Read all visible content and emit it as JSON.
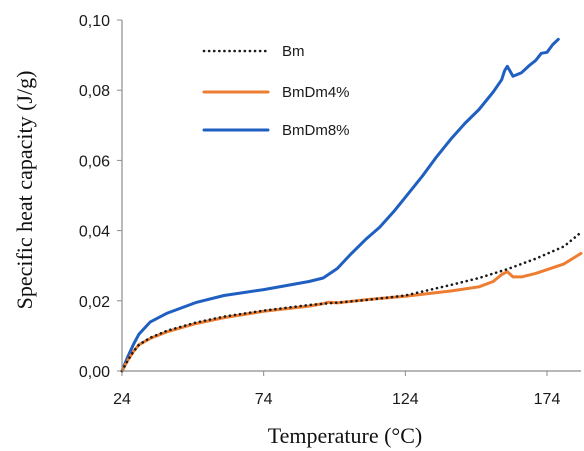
{
  "chart_data": {
    "type": "line",
    "title": "",
    "xlabel": "Temperature (°C)",
    "ylabel": "Specific heat capacity (J/g)",
    "xlim": [
      24,
      186
    ],
    "ylim": [
      0,
      0.1
    ],
    "xticks": [
      24,
      74,
      124,
      174
    ],
    "xtick_labels": [
      "24",
      "74",
      "124",
      "174"
    ],
    "yticks": [
      0,
      0.02,
      0.04,
      0.06,
      0.08,
      0.1
    ],
    "ytick_labels": [
      "0,00",
      "0,02",
      "0,04",
      "0,06",
      "0,08",
      "0,10"
    ],
    "grid": false,
    "legend_position": "top-left",
    "series": [
      {
        "name": "Bm",
        "color": "#1a1a1a",
        "style": "dotted",
        "x": [
          24,
          26,
          28,
          30,
          34,
          40,
          50,
          60,
          74,
          90,
          100,
          110,
          124,
          140,
          150,
          160,
          170,
          180,
          186
        ],
        "y": [
          0.0,
          0.003,
          0.0055,
          0.0075,
          0.0095,
          0.0115,
          0.0138,
          0.0155,
          0.0172,
          0.0188,
          0.0195,
          0.0202,
          0.0215,
          0.0245,
          0.0265,
          0.029,
          0.032,
          0.0355,
          0.0395
        ]
      },
      {
        "name": "BmDm4%",
        "color": "#ed7d31",
        "style": "solid",
        "x": [
          24,
          26,
          28,
          30,
          34,
          40,
          50,
          60,
          74,
          90,
          95,
          97,
          100,
          110,
          124,
          140,
          150,
          155,
          158,
          160,
          162,
          165,
          170,
          180,
          186
        ],
        "y": [
          0.0,
          0.003,
          0.0055,
          0.0075,
          0.0093,
          0.0112,
          0.0135,
          0.0152,
          0.017,
          0.0185,
          0.0192,
          0.0196,
          0.0194,
          0.0203,
          0.0213,
          0.0228,
          0.024,
          0.0255,
          0.0275,
          0.0283,
          0.0268,
          0.0268,
          0.0278,
          0.0305,
          0.0335
        ]
      },
      {
        "name": "BmDm8%",
        "color": "#1f5fc1",
        "style": "solid",
        "x": [
          24,
          26,
          28,
          30,
          34,
          40,
          50,
          60,
          74,
          90,
          95,
          100,
          105,
          110,
          115,
          120,
          124,
          130,
          135,
          140,
          145,
          150,
          155,
          158,
          159,
          160,
          162,
          165,
          168,
          170,
          172,
          174,
          176,
          178
        ],
        "y": [
          0.0,
          0.004,
          0.0075,
          0.0105,
          0.014,
          0.0165,
          0.0195,
          0.0215,
          0.0232,
          0.0255,
          0.0265,
          0.0292,
          0.0335,
          0.0375,
          0.041,
          0.0455,
          0.0495,
          0.0555,
          0.061,
          0.066,
          0.0705,
          0.0745,
          0.0795,
          0.083,
          0.0855,
          0.0868,
          0.084,
          0.085,
          0.0872,
          0.0885,
          0.0905,
          0.0908,
          0.093,
          0.0945
        ]
      }
    ]
  }
}
